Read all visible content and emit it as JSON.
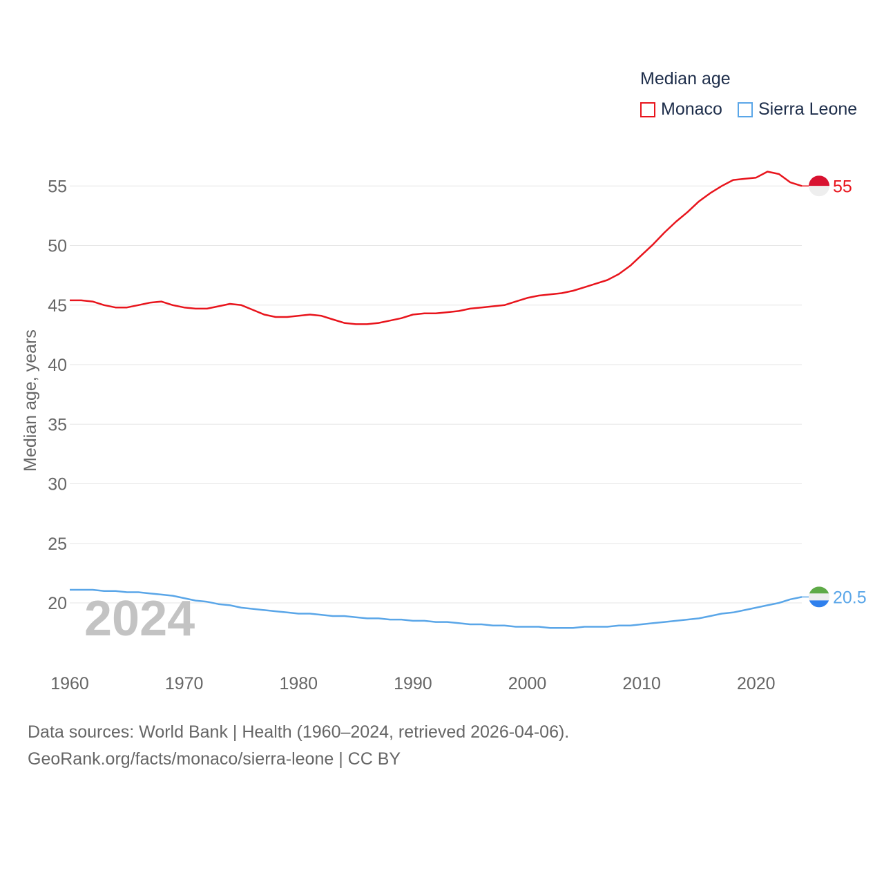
{
  "legend": {
    "title": "Median age",
    "items": [
      {
        "label": "Monaco",
        "color": "#e8141c"
      },
      {
        "label": "Sierra Leone",
        "color": "#5aa6e8"
      }
    ]
  },
  "footer": {
    "line1": "Data sources: World Bank | Health (1960–2024, retrieved 2026-04-06).",
    "line2": "GeoRank.org/facts/monaco/sierra-leone | CC BY"
  },
  "chart_data": {
    "type": "line",
    "title": "Median age",
    "xlabel": "",
    "ylabel": "Median age, years",
    "year_watermark": "2024",
    "xlim": [
      1960,
      2024
    ],
    "ylim": [
      15,
      58
    ],
    "x_ticks": [
      1960,
      1970,
      1980,
      1990,
      2000,
      2010,
      2020
    ],
    "y_ticks": [
      20,
      25,
      30,
      35,
      40,
      45,
      50,
      55
    ],
    "grid": true,
    "x": [
      1960,
      1961,
      1962,
      1963,
      1964,
      1965,
      1966,
      1967,
      1968,
      1969,
      1970,
      1971,
      1972,
      1973,
      1974,
      1975,
      1976,
      1977,
      1978,
      1979,
      1980,
      1981,
      1982,
      1983,
      1984,
      1985,
      1986,
      1987,
      1988,
      1989,
      1990,
      1991,
      1992,
      1993,
      1994,
      1995,
      1996,
      1997,
      1998,
      1999,
      2000,
      2001,
      2002,
      2003,
      2004,
      2005,
      2006,
      2007,
      2008,
      2009,
      2010,
      2011,
      2012,
      2013,
      2014,
      2015,
      2016,
      2017,
      2018,
      2019,
      2020,
      2021,
      2022,
      2023,
      2024
    ],
    "series": [
      {
        "name": "Monaco",
        "color": "#e8141c",
        "end_label": "55",
        "flag": "monaco-flag-icon",
        "values": [
          45.4,
          45.4,
          45.3,
          45.0,
          44.8,
          44.8,
          45.0,
          45.2,
          45.3,
          45.0,
          44.8,
          44.7,
          44.7,
          44.9,
          45.1,
          45.0,
          44.6,
          44.2,
          44.0,
          44.0,
          44.1,
          44.2,
          44.1,
          43.8,
          43.5,
          43.4,
          43.4,
          43.5,
          43.7,
          43.9,
          44.2,
          44.3,
          44.3,
          44.4,
          44.5,
          44.7,
          44.8,
          44.9,
          45.0,
          45.3,
          45.6,
          45.8,
          45.9,
          46.0,
          46.2,
          46.5,
          46.8,
          47.1,
          47.6,
          48.3,
          49.2,
          50.1,
          51.1,
          52.0,
          52.8,
          53.7,
          54.4,
          55.0,
          55.5,
          55.6,
          55.7,
          56.2,
          56.0,
          55.3,
          55.0
        ]
      },
      {
        "name": "Sierra Leone",
        "color": "#5aa6e8",
        "end_label": "20.5",
        "flag": "sierra-leone-flag-icon",
        "values": [
          21.1,
          21.1,
          21.1,
          21.0,
          21.0,
          20.9,
          20.9,
          20.8,
          20.7,
          20.6,
          20.4,
          20.2,
          20.1,
          19.9,
          19.8,
          19.6,
          19.5,
          19.4,
          19.3,
          19.2,
          19.1,
          19.1,
          19.0,
          18.9,
          18.9,
          18.8,
          18.7,
          18.7,
          18.6,
          18.6,
          18.5,
          18.5,
          18.4,
          18.4,
          18.3,
          18.2,
          18.2,
          18.1,
          18.1,
          18.0,
          18.0,
          18.0,
          17.9,
          17.9,
          17.9,
          18.0,
          18.0,
          18.0,
          18.1,
          18.1,
          18.2,
          18.3,
          18.4,
          18.5,
          18.6,
          18.7,
          18.9,
          19.1,
          19.2,
          19.4,
          19.6,
          19.8,
          20.0,
          20.3,
          20.5
        ]
      }
    ]
  }
}
